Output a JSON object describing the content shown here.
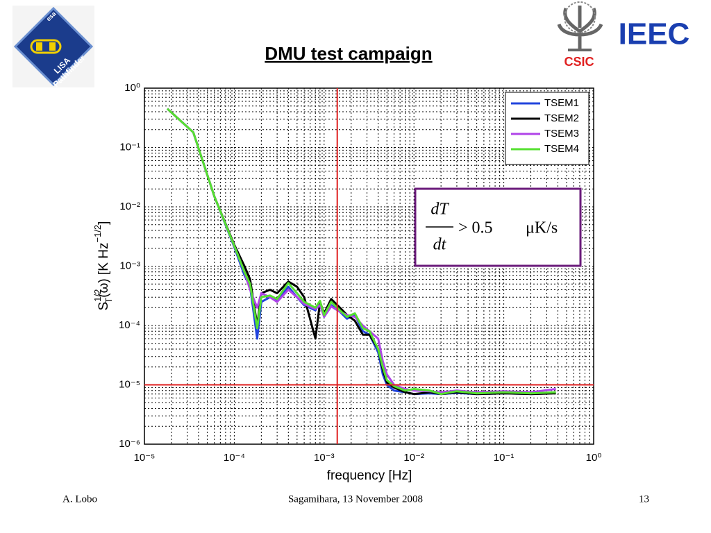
{
  "slide": {
    "title": "DMU test campaign",
    "footer_left": "A. Lobo",
    "footer_center": "Sagamihara, 13 November 2008",
    "footer_right": "13",
    "logo_left": [
      "esa",
      "LISA",
      "Pathfinder"
    ],
    "logo_right": [
      "IEEC",
      "CSIC"
    ]
  },
  "chart_data": {
    "type": "line",
    "x_label": "frequency [Hz]",
    "y_label_parts": [
      "S",
      "1/2",
      "T",
      "(ω) [K Hz",
      "−1/2",
      "]"
    ],
    "xscale": "log",
    "yscale": "log",
    "xlim": [
      1e-05,
      1
    ],
    "ylim": [
      1e-06,
      1
    ],
    "xticks": [
      {
        "value": 1e-05,
        "label": "10⁻⁵"
      },
      {
        "value": 0.0001,
        "label": "10⁻⁴"
      },
      {
        "value": 0.001,
        "label": "10⁻³"
      },
      {
        "value": 0.01,
        "label": "10⁻²"
      },
      {
        "value": 0.1,
        "label": "10⁻¹"
      },
      {
        "value": 1,
        "label": "10⁰"
      }
    ],
    "yticks": [
      {
        "value": 1e-06,
        "label": "10⁻⁶"
      },
      {
        "value": 1e-05,
        "label": "10⁻⁵"
      },
      {
        "value": 0.0001,
        "label": "10⁻⁴"
      },
      {
        "value": 0.001,
        "label": "10⁻³"
      },
      {
        "value": 0.01,
        "label": "10⁻²"
      },
      {
        "value": 0.1,
        "label": "10⁻¹"
      },
      {
        "value": 1,
        "label": "10⁰"
      }
    ],
    "grid": true,
    "minor_grid": true,
    "legend": "upper right",
    "vlines": [
      0.0014
    ],
    "hlines": [
      1e-05
    ],
    "reference_color": "#e02020",
    "formula": {
      "numerator": "dT",
      "denominator": "dt",
      "relation": "> 0.5",
      "unit": "μK/s"
    },
    "x": [
      1.8e-05,
      3.5e-05,
      6e-05,
      0.0001,
      0.00013,
      0.00015,
      0.00018,
      0.0002,
      0.00025,
      0.0003,
      0.0004,
      0.0005,
      0.0006,
      0.0008,
      0.0009,
      0.001,
      0.0012,
      0.0015,
      0.0018,
      0.0022,
      0.0027,
      0.0032,
      0.004,
      0.0045,
      0.005,
      0.006,
      0.008,
      0.01,
      0.015,
      0.02,
      0.03,
      0.05,
      0.1,
      0.2,
      0.38
    ],
    "series": [
      {
        "name": "TSEM1",
        "color": "#2244dd",
        "values": [
          0.45,
          0.18,
          0.015,
          0.0021,
          0.0007,
          0.00045,
          6e-05,
          0.00025,
          0.0003,
          0.00026,
          0.00045,
          0.0003,
          0.00022,
          0.00018,
          0.00025,
          0.00014,
          0.00022,
          0.00017,
          0.00013,
          0.00015,
          8e-05,
          7e-05,
          3.5e-05,
          1.5e-05,
          1e-05,
          8e-06,
          7.5e-06,
          7e-06,
          7.2e-06,
          7e-06,
          7.3e-06,
          7e-06,
          7.2e-06,
          7e-06,
          7.3e-06
        ]
      },
      {
        "name": "TSEM2",
        "color": "#000000",
        "values": [
          0.45,
          0.18,
          0.015,
          0.0023,
          0.001,
          0.0006,
          0.0001,
          0.00035,
          0.0004,
          0.00035,
          0.00055,
          0.00045,
          0.0003,
          6e-05,
          0.00025,
          0.00016,
          0.00028,
          0.0002,
          0.00015,
          0.00012,
          7e-05,
          7e-05,
          4e-05,
          1.8e-05,
          1.1e-05,
          9e-06,
          7.5e-06,
          7e-06,
          7.5e-06,
          7e-06,
          7.5e-06,
          7e-06,
          7.2e-06,
          7e-06,
          7.2e-06
        ]
      },
      {
        "name": "TSEM3",
        "color": "#b044e8",
        "values": [
          0.45,
          0.18,
          0.015,
          0.0022,
          0.0008,
          0.0004,
          0.0002,
          0.00035,
          0.0003,
          0.00025,
          0.0004,
          0.0003,
          0.00023,
          0.00019,
          0.00022,
          0.00014,
          0.00021,
          0.00017,
          0.00015,
          0.00014,
          0.0001,
          8e-05,
          6e-05,
          2.5e-05,
          1.5e-05,
          1e-05,
          8.5e-06,
          8e-06,
          7.8e-06,
          7.5e-06,
          8e-06,
          7.5e-06,
          7.8e-06,
          7.5e-06,
          8.5e-06
        ]
      },
      {
        "name": "TSEM4",
        "color": "#55e030",
        "values": [
          0.45,
          0.18,
          0.015,
          0.0022,
          0.0008,
          0.0005,
          9e-05,
          0.0003,
          0.00032,
          0.00028,
          0.00052,
          0.00035,
          0.00025,
          0.0002,
          0.00026,
          0.00015,
          0.00025,
          0.00018,
          0.00014,
          0.00016,
          9e-05,
          8e-05,
          4e-05,
          2e-05,
          1.2e-05,
          9.5e-06,
          8e-06,
          8.5e-06,
          8e-06,
          7e-06,
          7.8e-06,
          7.2e-06,
          7.5e-06,
          7.2e-06,
          7.5e-06
        ]
      }
    ]
  }
}
